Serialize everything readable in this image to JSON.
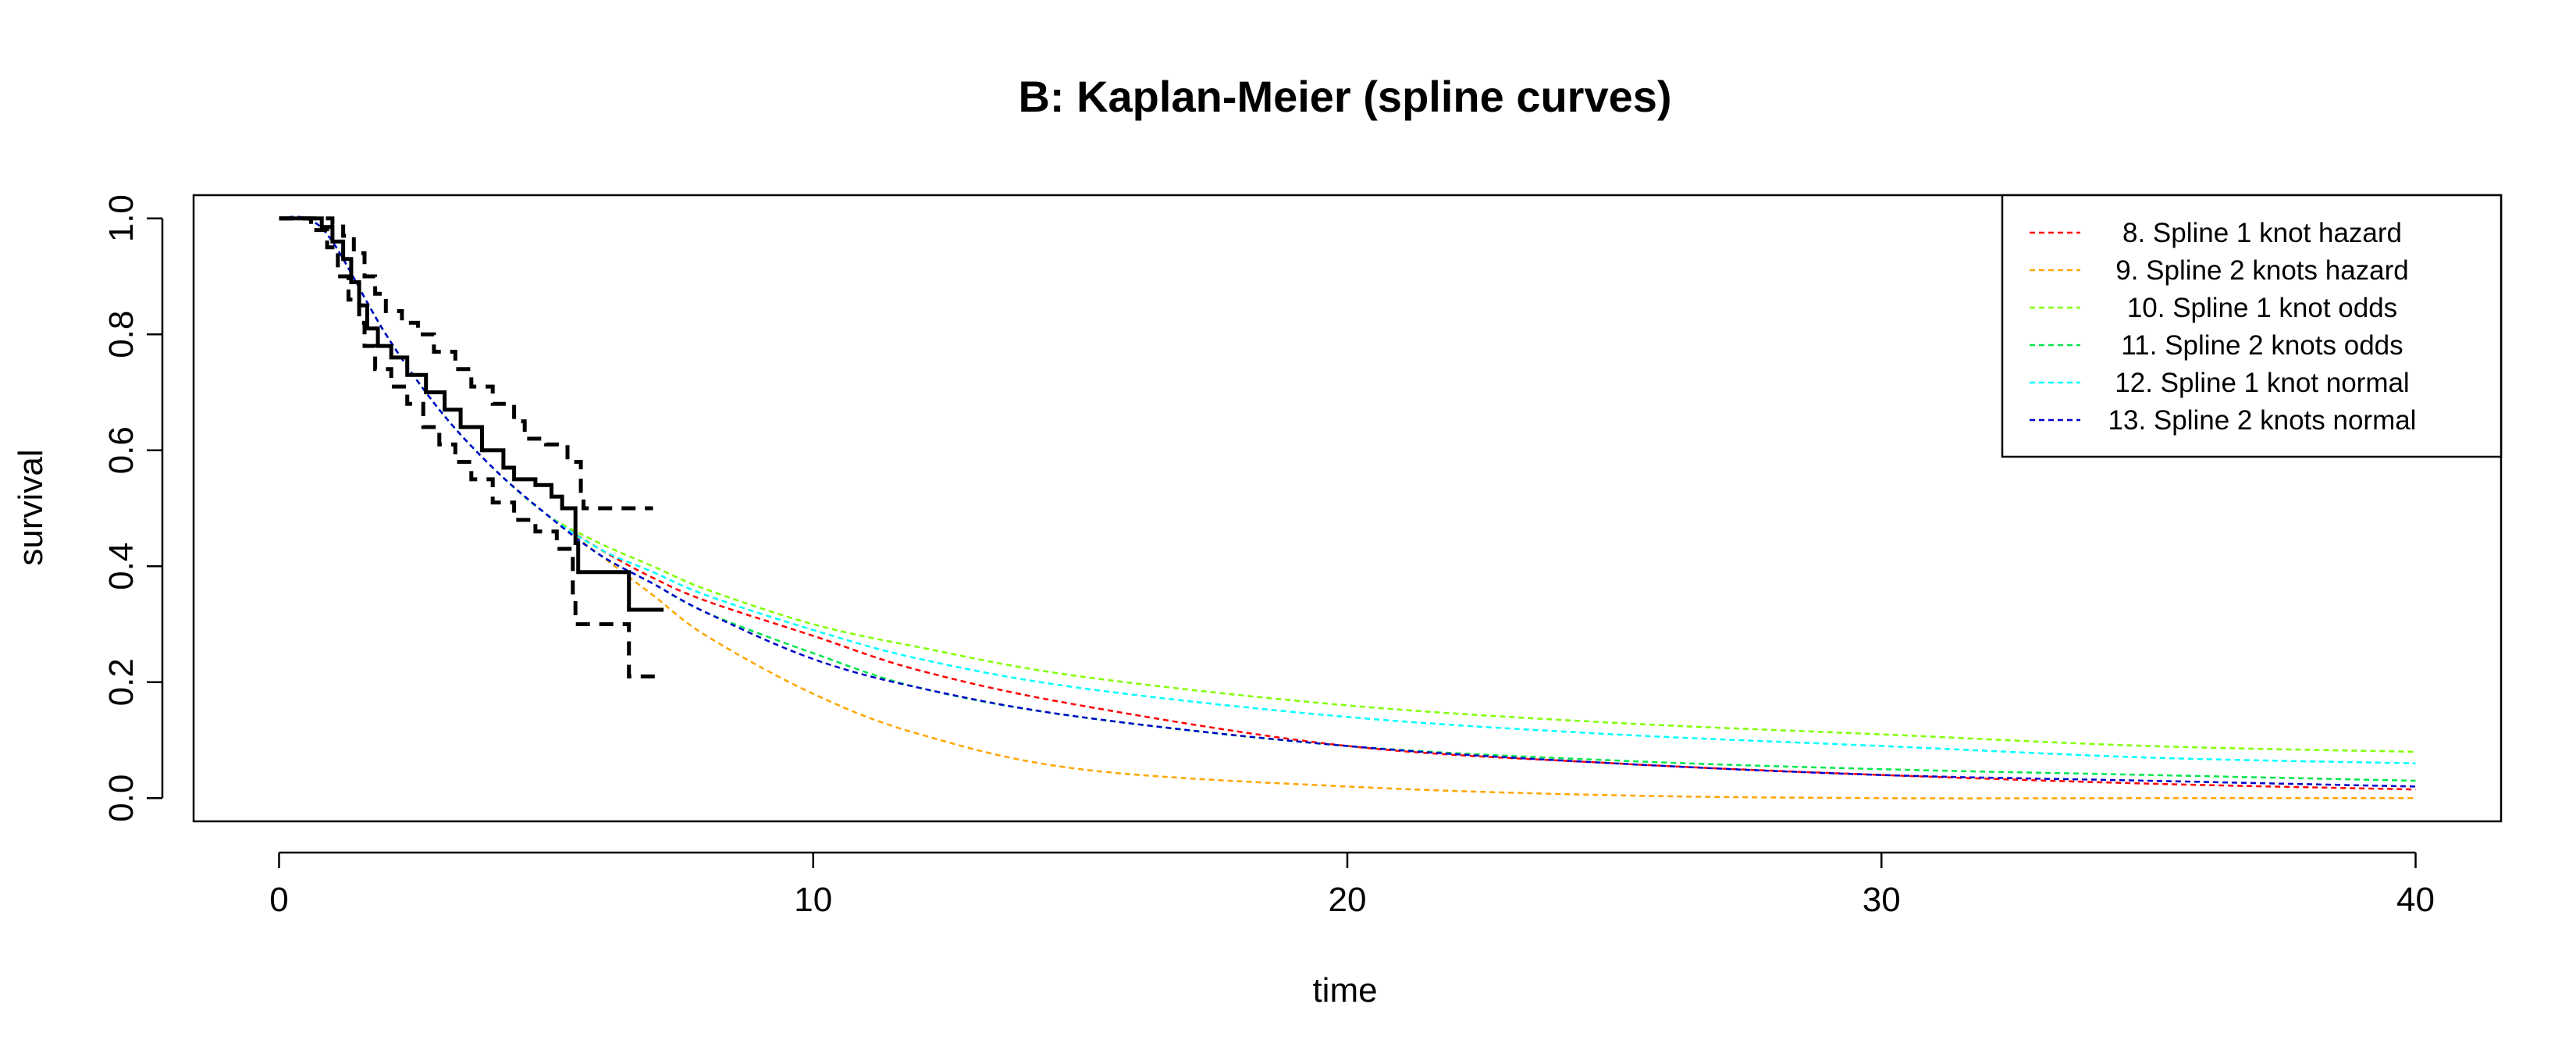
{
  "chart_data": {
    "type": "line",
    "title": "B: Kaplan-Meier (spline curves)",
    "xlabel": "time",
    "ylabel": "survival",
    "xlim": [
      -1.6,
      41.6
    ],
    "ylim": [
      -0.04,
      1.04
    ],
    "x_ticks": [
      0,
      10,
      20,
      30,
      40
    ],
    "y_ticks": [
      0.0,
      0.2,
      0.4,
      0.6,
      0.8,
      1.0
    ],
    "x_tick_labels": [
      "0",
      "10",
      "20",
      "30",
      "40"
    ],
    "y_tick_labels": [
      "0.0",
      "0.2",
      "0.4",
      "0.6",
      "0.8",
      "1.0"
    ],
    "legend_position": "top-right",
    "km": {
      "estimate": [
        [
          0,
          1.0
        ],
        [
          0.5,
          1.0
        ],
        [
          0.8,
          0.985
        ],
        [
          1.0,
          0.96
        ],
        [
          1.2,
          0.93
        ],
        [
          1.35,
          0.89
        ],
        [
          1.5,
          0.85
        ],
        [
          1.65,
          0.81
        ],
        [
          1.85,
          0.78
        ],
        [
          2.1,
          0.76
        ],
        [
          2.4,
          0.73
        ],
        [
          2.75,
          0.7
        ],
        [
          3.1,
          0.67
        ],
        [
          3.4,
          0.64
        ],
        [
          3.8,
          0.6
        ],
        [
          4.2,
          0.57
        ],
        [
          4.4,
          0.55
        ],
        [
          4.8,
          0.54
        ],
        [
          5.1,
          0.52
        ],
        [
          5.3,
          0.5
        ],
        [
          5.55,
          0.44
        ],
        [
          5.6,
          0.39
        ],
        [
          6.5,
          0.39
        ],
        [
          6.55,
          0.325
        ],
        [
          7.2,
          0.325
        ]
      ],
      "upper": [
        [
          0,
          1.0
        ],
        [
          0.7,
          1.0
        ],
        [
          1.0,
          0.99
        ],
        [
          1.2,
          0.97
        ],
        [
          1.4,
          0.94
        ],
        [
          1.6,
          0.9
        ],
        [
          1.8,
          0.87
        ],
        [
          2.0,
          0.84
        ],
        [
          2.3,
          0.82
        ],
        [
          2.6,
          0.8
        ],
        [
          2.9,
          0.77
        ],
        [
          3.3,
          0.74
        ],
        [
          3.6,
          0.71
        ],
        [
          4.0,
          0.68
        ],
        [
          4.4,
          0.65
        ],
        [
          4.6,
          0.62
        ],
        [
          5.0,
          0.61
        ],
        [
          5.4,
          0.58
        ],
        [
          5.65,
          0.53
        ],
        [
          5.7,
          0.5
        ],
        [
          7.0,
          0.5
        ]
      ],
      "lower": [
        [
          0,
          1.0
        ],
        [
          0.5,
          1.0
        ],
        [
          0.6,
          0.98
        ],
        [
          0.9,
          0.95
        ],
        [
          1.1,
          0.9
        ],
        [
          1.3,
          0.86
        ],
        [
          1.5,
          0.82
        ],
        [
          1.6,
          0.78
        ],
        [
          1.8,
          0.74
        ],
        [
          2.1,
          0.71
        ],
        [
          2.4,
          0.68
        ],
        [
          2.7,
          0.64
        ],
        [
          3.0,
          0.61
        ],
        [
          3.3,
          0.58
        ],
        [
          3.6,
          0.55
        ],
        [
          4.0,
          0.51
        ],
        [
          4.4,
          0.48
        ],
        [
          4.8,
          0.46
        ],
        [
          5.2,
          0.43
        ],
        [
          5.5,
          0.35
        ],
        [
          5.55,
          0.3
        ],
        [
          6.5,
          0.3
        ],
        [
          6.55,
          0.21
        ],
        [
          7.2,
          0.21
        ]
      ]
    },
    "series": [
      {
        "name": "8. Spline 1 knot hazard",
        "color": "#FF0000",
        "points": [
          [
            0,
            1.0
          ],
          [
            0.5,
            1.0
          ],
          [
            1,
            0.96
          ],
          [
            2,
            0.8
          ],
          [
            3,
            0.67
          ],
          [
            4,
            0.57
          ],
          [
            5,
            0.49
          ],
          [
            6,
            0.43
          ],
          [
            7,
            0.38
          ],
          [
            8,
            0.34
          ],
          [
            10,
            0.28
          ],
          [
            12,
            0.22
          ],
          [
            15,
            0.16
          ],
          [
            20,
            0.09
          ],
          [
            25,
            0.06
          ],
          [
            30,
            0.04
          ],
          [
            35,
            0.025
          ],
          [
            40,
            0.015
          ]
        ]
      },
      {
        "name": "9. Spline 2 knots hazard",
        "color": "#FFA500",
        "points": [
          [
            0,
            1.0
          ],
          [
            0.5,
            1.0
          ],
          [
            1,
            0.96
          ],
          [
            2,
            0.8
          ],
          [
            3,
            0.67
          ],
          [
            4,
            0.57
          ],
          [
            5,
            0.49
          ],
          [
            6,
            0.42
          ],
          [
            7,
            0.35
          ],
          [
            8,
            0.28
          ],
          [
            10,
            0.18
          ],
          [
            12,
            0.11
          ],
          [
            15,
            0.05
          ],
          [
            20,
            0.02
          ],
          [
            25,
            0.005
          ],
          [
            30,
            0.0
          ],
          [
            35,
            0.0
          ],
          [
            40,
            0.0
          ]
        ]
      },
      {
        "name": "10. Spline 1 knot odds",
        "color": "#80FF00",
        "points": [
          [
            0,
            1.0
          ],
          [
            0.5,
            1.0
          ],
          [
            1,
            0.96
          ],
          [
            2,
            0.8
          ],
          [
            3,
            0.67
          ],
          [
            4,
            0.57
          ],
          [
            5,
            0.49
          ],
          [
            6,
            0.44
          ],
          [
            7,
            0.4
          ],
          [
            8,
            0.36
          ],
          [
            10,
            0.3
          ],
          [
            12,
            0.26
          ],
          [
            15,
            0.21
          ],
          [
            20,
            0.16
          ],
          [
            25,
            0.13
          ],
          [
            30,
            0.11
          ],
          [
            35,
            0.09
          ],
          [
            40,
            0.08
          ]
        ]
      },
      {
        "name": "11. Spline 2 knots odds",
        "color": "#00E64D",
        "points": [
          [
            0,
            1.0
          ],
          [
            0.5,
            1.0
          ],
          [
            1,
            0.96
          ],
          [
            2,
            0.8
          ],
          [
            3,
            0.67
          ],
          [
            4,
            0.57
          ],
          [
            5,
            0.49
          ],
          [
            6,
            0.42
          ],
          [
            7,
            0.37
          ],
          [
            8,
            0.32
          ],
          [
            10,
            0.25
          ],
          [
            12,
            0.19
          ],
          [
            15,
            0.14
          ],
          [
            20,
            0.09
          ],
          [
            25,
            0.065
          ],
          [
            30,
            0.05
          ],
          [
            35,
            0.04
          ],
          [
            40,
            0.03
          ]
        ]
      },
      {
        "name": "12. Spline 1 knot normal",
        "color": "#00FFFF",
        "points": [
          [
            0,
            1.0
          ],
          [
            0.5,
            1.0
          ],
          [
            1,
            0.96
          ],
          [
            2,
            0.8
          ],
          [
            3,
            0.67
          ],
          [
            4,
            0.57
          ],
          [
            5,
            0.49
          ],
          [
            6,
            0.43
          ],
          [
            7,
            0.39
          ],
          [
            8,
            0.35
          ],
          [
            10,
            0.29
          ],
          [
            12,
            0.24
          ],
          [
            15,
            0.19
          ],
          [
            20,
            0.14
          ],
          [
            25,
            0.11
          ],
          [
            30,
            0.09
          ],
          [
            35,
            0.07
          ],
          [
            40,
            0.06
          ]
        ]
      },
      {
        "name": "13. Spline 2 knots normal",
        "color": "#0000CD",
        "points": [
          [
            0,
            1.0
          ],
          [
            0.5,
            1.0
          ],
          [
            1,
            0.96
          ],
          [
            2,
            0.8
          ],
          [
            3,
            0.67
          ],
          [
            4,
            0.57
          ],
          [
            5,
            0.49
          ],
          [
            6,
            0.42
          ],
          [
            7,
            0.37
          ],
          [
            8,
            0.32
          ],
          [
            10,
            0.24
          ],
          [
            12,
            0.19
          ],
          [
            15,
            0.14
          ],
          [
            20,
            0.09
          ],
          [
            25,
            0.06
          ],
          [
            30,
            0.04
          ],
          [
            35,
            0.03
          ],
          [
            40,
            0.02
          ]
        ]
      }
    ]
  }
}
